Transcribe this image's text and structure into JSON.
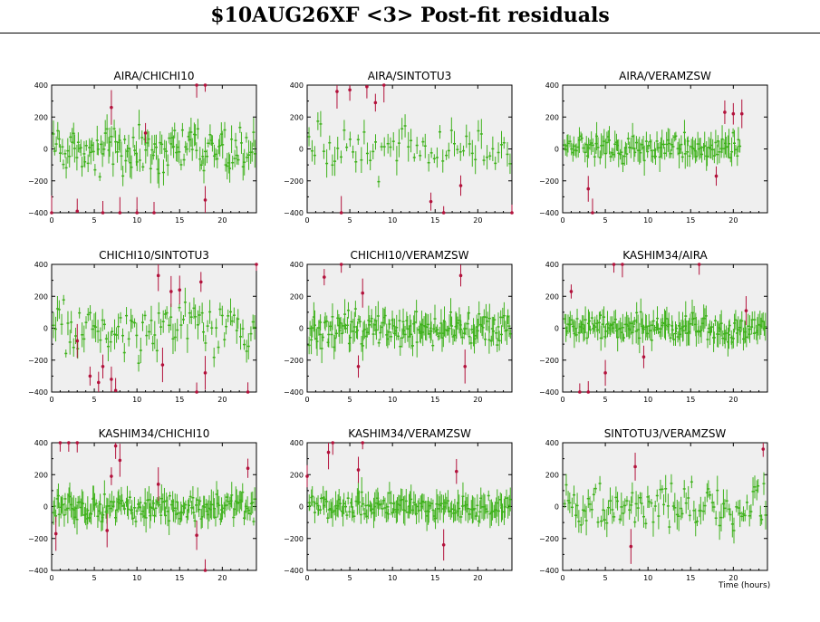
{
  "page": {
    "title": "$10AUG26XF <3> Post-fit residuals",
    "time_axis_label": "Time (hours)"
  },
  "colors": {
    "panel_background": "#efefef",
    "good_points": "#3fb21c",
    "flagged_points": "#b3123c",
    "axis": "#000000"
  },
  "chart_data": [
    {
      "type": "scatter",
      "title": "AIRA/CHICHI10",
      "xlim": [
        0,
        24
      ],
      "ylim": [
        -400,
        400
      ],
      "xticks": [
        "0",
        "5",
        "10",
        "15",
        "20"
      ],
      "yticks": [
        "−400",
        "−200",
        "0",
        "200",
        "400"
      ],
      "x_end": 24,
      "good_amp": 150,
      "good_count": 140,
      "flagged": [
        [
          0,
          -400
        ],
        [
          3,
          -390
        ],
        [
          6,
          -400
        ],
        [
          7,
          260
        ],
        [
          8,
          -400
        ],
        [
          10,
          -400
        ],
        [
          11,
          100
        ],
        [
          12,
          -400
        ],
        [
          17,
          400
        ],
        [
          18,
          -320
        ],
        [
          18,
          400
        ]
      ]
    },
    {
      "type": "scatter",
      "title": "AIRA/SINTOTU3",
      "xlim": [
        0,
        24
      ],
      "ylim": [
        -400,
        400
      ],
      "xticks": [
        "0",
        "5",
        "10",
        "15",
        "20"
      ],
      "yticks": [
        "−400",
        "−200",
        "0",
        "200",
        "400"
      ],
      "x_end": 24,
      "good_amp": 170,
      "good_count": 70,
      "flagged": [
        [
          3.5,
          360
        ],
        [
          4,
          -400
        ],
        [
          5,
          370
        ],
        [
          7,
          390
        ],
        [
          8,
          290
        ],
        [
          9,
          400
        ],
        [
          14.5,
          -330
        ],
        [
          16,
          -400
        ],
        [
          18,
          -230
        ],
        [
          24,
          -400
        ]
      ]
    },
    {
      "type": "scatter",
      "title": "AIRA/VERAMZSW",
      "xlim": [
        0,
        24
      ],
      "ylim": [
        -400,
        400
      ],
      "xticks": [
        "0",
        "5",
        "10",
        "15",
        "20"
      ],
      "yticks": [
        "−400",
        "−200",
        "0",
        "200",
        "400"
      ],
      "x_end": 21,
      "good_amp": 90,
      "good_count": 130,
      "flagged": [
        [
          3,
          -250
        ],
        [
          3.5,
          -400
        ],
        [
          18,
          -170
        ],
        [
          19,
          230
        ],
        [
          20,
          220
        ],
        [
          21,
          220
        ]
      ]
    },
    {
      "type": "scatter",
      "title": "CHICHI10/SINTOTU3",
      "xlim": [
        0,
        24
      ],
      "ylim": [
        -400,
        400
      ],
      "xticks": [
        "0",
        "5",
        "10",
        "15",
        "20"
      ],
      "yticks": [
        "−400",
        "−200",
        "0",
        "200",
        "400"
      ],
      "x_end": 24,
      "good_amp": 180,
      "good_count": 100,
      "flagged": [
        [
          3,
          -80
        ],
        [
          4.5,
          -300
        ],
        [
          5.5,
          -340
        ],
        [
          6,
          -240
        ],
        [
          7,
          -320
        ],
        [
          7.5,
          -390
        ],
        [
          12.5,
          330
        ],
        [
          13,
          -230
        ],
        [
          14,
          230
        ],
        [
          15,
          240
        ],
        [
          17,
          -400
        ],
        [
          17.5,
          290
        ],
        [
          18,
          -280
        ],
        [
          23,
          -400
        ],
        [
          24,
          400
        ]
      ]
    },
    {
      "type": "scatter",
      "title": "CHICHI10/VERAMZSW",
      "xlim": [
        0,
        24
      ],
      "ylim": [
        -400,
        400
      ],
      "xticks": [
        "0",
        "5",
        "10",
        "15",
        "20"
      ],
      "yticks": [
        "−400",
        "−200",
        "0",
        "200",
        "400"
      ],
      "x_end": 24,
      "good_amp": 110,
      "good_count": 170,
      "flagged": [
        [
          2,
          320
        ],
        [
          4,
          400
        ],
        [
          6,
          -240
        ],
        [
          6.5,
          220
        ],
        [
          18,
          330
        ],
        [
          18.5,
          -240
        ]
      ]
    },
    {
      "type": "scatter",
      "title": "KASHIM34/AIRA",
      "xlim": [
        0,
        24
      ],
      "ylim": [
        -400,
        400
      ],
      "xticks": [
        "0",
        "5",
        "10",
        "15",
        "20"
      ],
      "yticks": [
        "−400",
        "−200",
        "0",
        "200",
        "400"
      ],
      "x_end": 24,
      "good_amp": 90,
      "good_count": 170,
      "flagged": [
        [
          1,
          230
        ],
        [
          2,
          -400
        ],
        [
          3,
          -400
        ],
        [
          5,
          -280
        ],
        [
          6,
          400
        ],
        [
          7,
          400
        ],
        [
          9.5,
          -180
        ],
        [
          16,
          400
        ],
        [
          21.5,
          110
        ]
      ]
    },
    {
      "type": "scatter",
      "title": "KASHIM34/CHICHI10",
      "xlim": [
        0,
        24
      ],
      "ylim": [
        -400,
        400
      ],
      "xticks": [
        "0",
        "5",
        "10",
        "15",
        "20"
      ],
      "yticks": [
        "−400",
        "−200",
        "0",
        "200",
        "400"
      ],
      "x_end": 24,
      "good_amp": 90,
      "good_count": 170,
      "flagged": [
        [
          0.5,
          -170
        ],
        [
          1,
          400
        ],
        [
          2,
          410
        ],
        [
          3,
          410
        ],
        [
          6.5,
          -150
        ],
        [
          7,
          190
        ],
        [
          7.5,
          380
        ],
        [
          8,
          290
        ],
        [
          12.5,
          140
        ],
        [
          17,
          -180
        ],
        [
          18,
          -410
        ],
        [
          23,
          240
        ]
      ]
    },
    {
      "type": "scatter",
      "title": "KASHIM34/VERAMZSW",
      "xlim": [
        0,
        24
      ],
      "ylim": [
        -400,
        400
      ],
      "xticks": [
        "0",
        "5",
        "10",
        "15",
        "20"
      ],
      "yticks": [
        "−400",
        "−200",
        "0",
        "200",
        "400"
      ],
      "x_end": 24,
      "good_amp": 80,
      "good_count": 160,
      "flagged": [
        [
          0,
          190
        ],
        [
          2.5,
          340
        ],
        [
          3,
          400
        ],
        [
          6,
          230
        ],
        [
          6.5,
          410
        ],
        [
          16,
          -240
        ],
        [
          17.5,
          220
        ]
      ]
    },
    {
      "type": "scatter",
      "title": "SINTOTU3/VERAMZSW",
      "xlim": [
        0,
        24
      ],
      "ylim": [
        -400,
        400
      ],
      "xticks": [
        "0",
        "5",
        "10",
        "15",
        "20"
      ],
      "yticks": [
        "−400",
        "−200",
        "0",
        "200",
        "400"
      ],
      "x_end": 24,
      "good_amp": 140,
      "good_count": 110,
      "flagged": [
        [
          8,
          -250
        ],
        [
          8.5,
          250
        ],
        [
          23.5,
          360
        ]
      ]
    }
  ]
}
